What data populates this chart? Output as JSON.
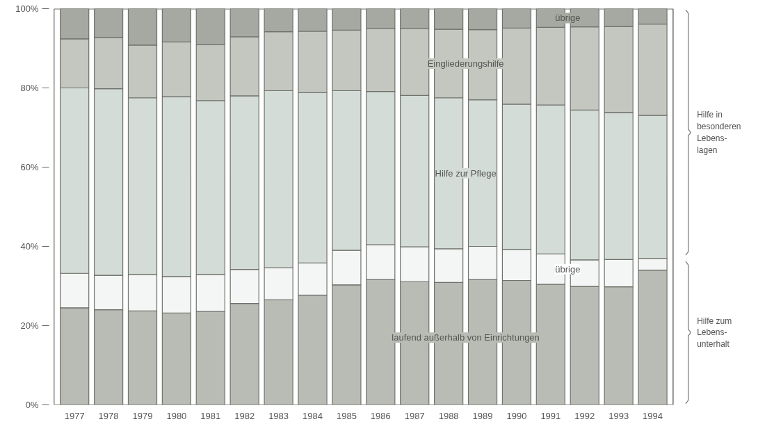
{
  "chart_data": {
    "type": "bar",
    "stacked": true,
    "grid": false,
    "categories": [
      "1977",
      "1978",
      "1979",
      "1980",
      "1981",
      "1982",
      "1983",
      "1984",
      "1985",
      "1986",
      "1987",
      "1988",
      "1989",
      "1990",
      "1991",
      "1992",
      "1993",
      "1994"
    ],
    "series": [
      {
        "name": "laufend außerhalb von Einrichtungen",
        "color": "#b9bcb4",
        "values": [
          24.5,
          24.0,
          23.7,
          23.2,
          23.6,
          25.6,
          26.5,
          27.7,
          30.3,
          31.6,
          31.1,
          30.9,
          31.6,
          31.4,
          30.4,
          29.9,
          29.8,
          34.0
        ]
      },
      {
        "name": "übrige",
        "color": "#f4f5f5",
        "values": [
          8.7,
          8.7,
          9.2,
          9.2,
          9.3,
          8.6,
          8.1,
          8.1,
          8.7,
          8.8,
          8.8,
          8.5,
          8.4,
          7.8,
          7.7,
          6.7,
          6.9,
          3.0
        ]
      },
      {
        "name": "Hilfe zur Pflege",
        "color": "#d3dcd6",
        "values": [
          46.8,
          47.1,
          44.6,
          45.4,
          43.9,
          43.8,
          44.7,
          43.0,
          40.3,
          38.7,
          38.2,
          38.1,
          37.0,
          36.7,
          37.6,
          37.8,
          37.1,
          36.1
        ]
      },
      {
        "name": "Eingliederungshilfe",
        "color": "#c3c7bf",
        "values": [
          12.4,
          12.9,
          13.3,
          13.8,
          14.1,
          14.9,
          14.9,
          15.5,
          15.3,
          15.9,
          16.9,
          17.3,
          17.7,
          19.2,
          19.6,
          21.0,
          21.7,
          23.0
        ]
      },
      {
        "name": "übrige",
        "color": "#a5a9a1",
        "values": [
          7.6,
          7.3,
          9.2,
          8.4,
          9.1,
          7.1,
          5.8,
          5.7,
          5.4,
          5.0,
          5.0,
          5.2,
          5.3,
          4.9,
          4.7,
          4.6,
          4.5,
          3.9
        ]
      }
    ],
    "ylim": [
      0,
      100
    ],
    "yticks": [
      {
        "value": 0,
        "label": "0%"
      },
      {
        "value": 20,
        "label": "20%"
      },
      {
        "value": 40,
        "label": "40%"
      },
      {
        "value": 60,
        "label": "60%"
      },
      {
        "value": 80,
        "label": "80%"
      },
      {
        "value": 100,
        "label": "100%"
      }
    ],
    "annotations": [
      "Hilfe in\nbesonderen\nLebens-\nlagen",
      "Hilfe zum\nLebens-\nunterhalt"
    ]
  }
}
